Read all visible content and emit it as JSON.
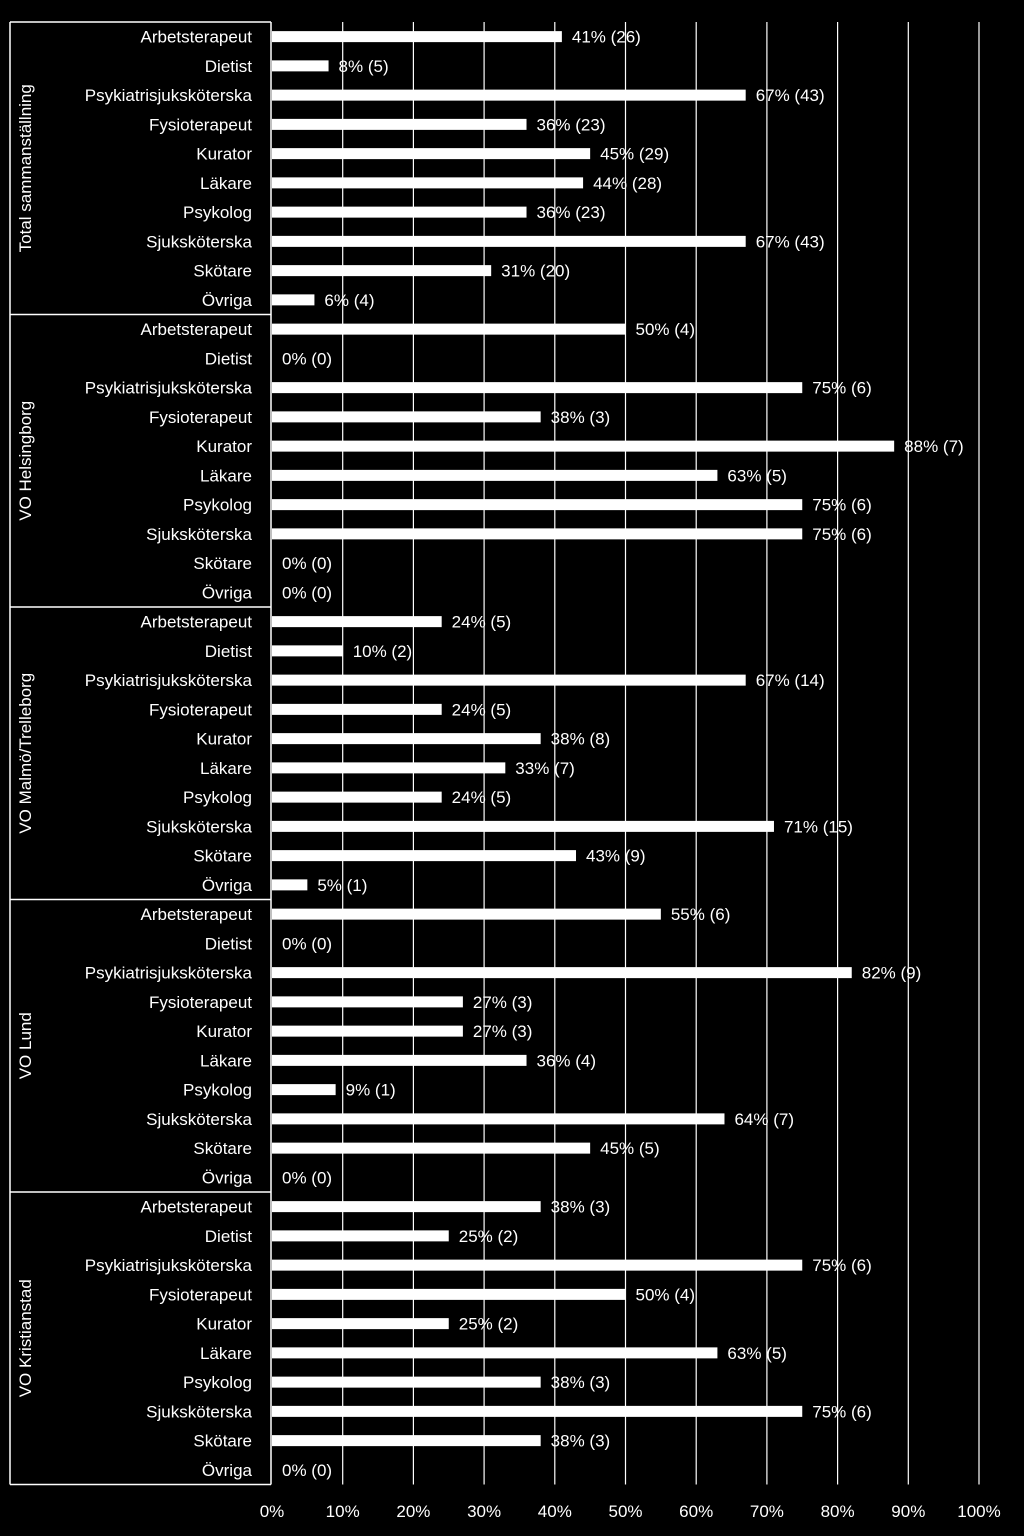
{
  "chart_data": {
    "type": "bar",
    "orientation": "horizontal",
    "xlim": [
      0,
      100
    ],
    "x_ticks": [
      "0%",
      "10%",
      "20%",
      "30%",
      "40%",
      "50%",
      "60%",
      "70%",
      "80%",
      "90%",
      "100%"
    ],
    "grid": "vertical",
    "colors": {
      "background": "#000000",
      "bars": "#ffffff",
      "text": "#ffffff",
      "grid": "#ffffff"
    },
    "groups": [
      {
        "name": "Total sammanställning",
        "categories": [
          "Arbetsterapeut",
          "Dietist",
          "Psykiatrisjuksköterska",
          "Fysioterapeut",
          "Kurator",
          "Läkare",
          "Psykolog",
          "Sjuksköterska",
          "Skötare",
          "Övriga"
        ],
        "values": [
          41,
          8,
          67,
          36,
          45,
          44,
          36,
          67,
          31,
          6
        ],
        "labels": [
          "41% (26)",
          "8% (5)",
          "67% (43)",
          "36% (23)",
          "45% (29)",
          "44% (28)",
          "36% (23)",
          "67% (43)",
          "31% (20)",
          "6% (4)"
        ]
      },
      {
        "name": "VO Helsingborg",
        "categories": [
          "Arbetsterapeut",
          "Dietist",
          "Psykiatrisjuksköterska",
          "Fysioterapeut",
          "Kurator",
          "Läkare",
          "Psykolog",
          "Sjuksköterska",
          "Skötare",
          "Övriga"
        ],
        "values": [
          50,
          0,
          75,
          38,
          88,
          63,
          75,
          75,
          0,
          0
        ],
        "labels": [
          "50% (4)",
          "0% (0)",
          "75% (6)",
          "38% (3)",
          "88% (7)",
          "63% (5)",
          "75% (6)",
          "75% (6)",
          "0% (0)",
          "0% (0)"
        ]
      },
      {
        "name": "VO Malmö/Trelleborg",
        "categories": [
          "Arbetsterapeut",
          "Dietist",
          "Psykiatrisjuksköterska",
          "Fysioterapeut",
          "Kurator",
          "Läkare",
          "Psykolog",
          "Sjuksköterska",
          "Skötare",
          "Övriga"
        ],
        "values": [
          24,
          10,
          67,
          24,
          38,
          33,
          24,
          71,
          43,
          5
        ],
        "labels": [
          "24% (5)",
          "10% (2)",
          "67% (14)",
          "24% (5)",
          "38% (8)",
          "33% (7)",
          "24% (5)",
          "71% (15)",
          "43% (9)",
          "5% (1)"
        ]
      },
      {
        "name": "VO Lund",
        "categories": [
          "Arbetsterapeut",
          "Dietist",
          "Psykiatrisjuksköterska",
          "Fysioterapeut",
          "Kurator",
          "Läkare",
          "Psykolog",
          "Sjuksköterska",
          "Skötare",
          "Övriga"
        ],
        "values": [
          55,
          0,
          82,
          27,
          27,
          36,
          9,
          64,
          45,
          0
        ],
        "labels": [
          "55% (6)",
          "0% (0)",
          "82% (9)",
          "27% (3)",
          "27% (3)",
          "36% (4)",
          "9% (1)",
          "64% (7)",
          "45% (5)",
          "0% (0)"
        ]
      },
      {
        "name": "VO Kristianstad",
        "categories": [
          "Arbetsterapeut",
          "Dietist",
          "Psykiatrisjuksköterska",
          "Fysioterapeut",
          "Kurator",
          "Läkare",
          "Psykolog",
          "Sjuksköterska",
          "Skötare",
          "Övriga"
        ],
        "values": [
          38,
          25,
          75,
          50,
          25,
          63,
          38,
          75,
          38,
          0
        ],
        "labels": [
          "38% (3)",
          "25% (2)",
          "75% (6)",
          "50% (4)",
          "25% (2)",
          "63% (5)",
          "38% (3)",
          "75% (6)",
          "38% (3)",
          "0% (0)"
        ]
      }
    ]
  }
}
